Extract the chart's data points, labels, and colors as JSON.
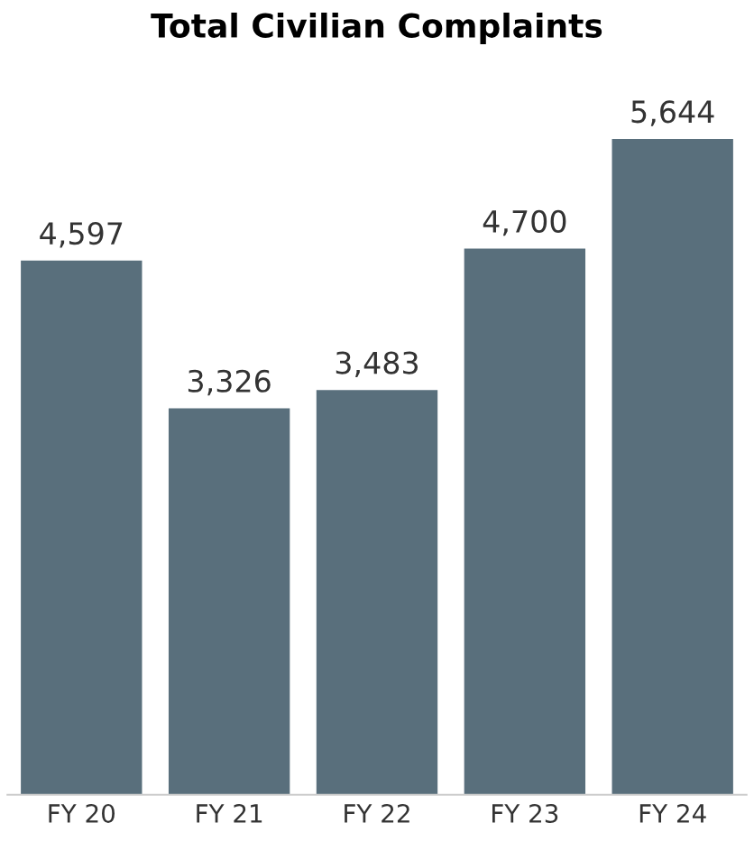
{
  "chart_data": {
    "type": "bar",
    "title": "Total Civilian Complaints",
    "categories": [
      "FY 20",
      "FY 21",
      "FY 22",
      "FY 23",
      "FY 24"
    ],
    "values": [
      4597,
      3326,
      3483,
      4700,
      5644
    ],
    "value_labels": [
      "4,597",
      "3,326",
      "3,483",
      "4,700",
      "5,644"
    ],
    "color": "#596f7c",
    "grid": false,
    "legend": false,
    "tick_labels": "x"
  }
}
